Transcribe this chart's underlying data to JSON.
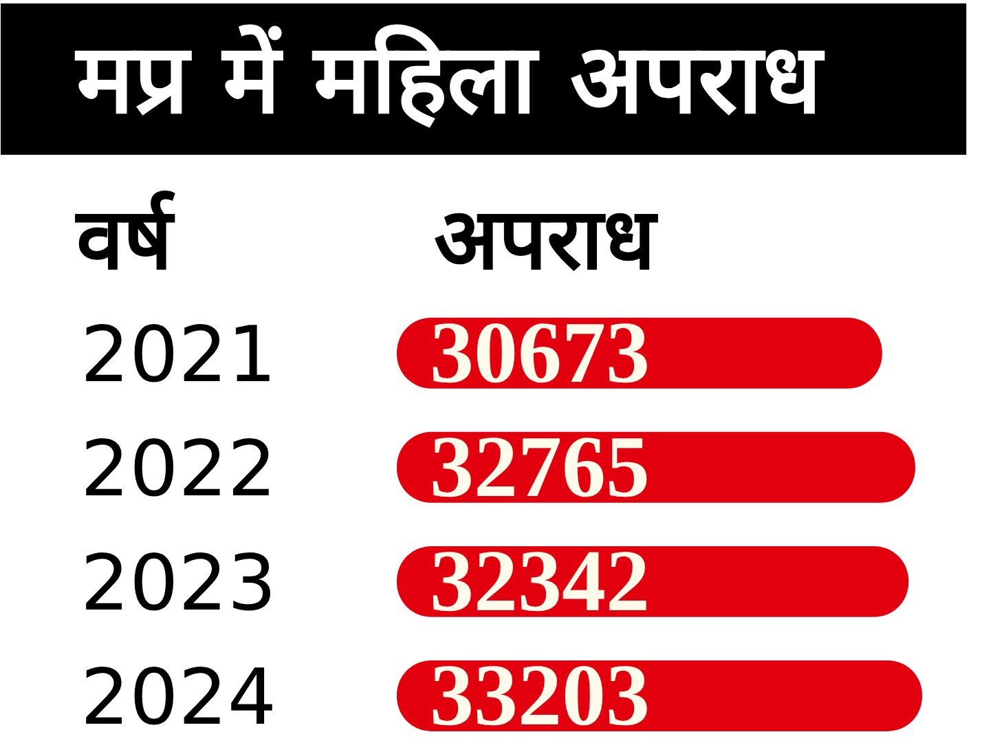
{
  "chart_data": {
    "type": "bar",
    "orientation": "horizontal",
    "title": "मप्र में महिला अपराध",
    "ylabel": "वर्ष",
    "xlabel": "अपराध",
    "categories": [
      "2021",
      "2022",
      "2023",
      "2024"
    ],
    "values": [
      30673,
      32765,
      32342,
      33203
    ],
    "color": "#e2000f",
    "data_labels": true
  }
}
